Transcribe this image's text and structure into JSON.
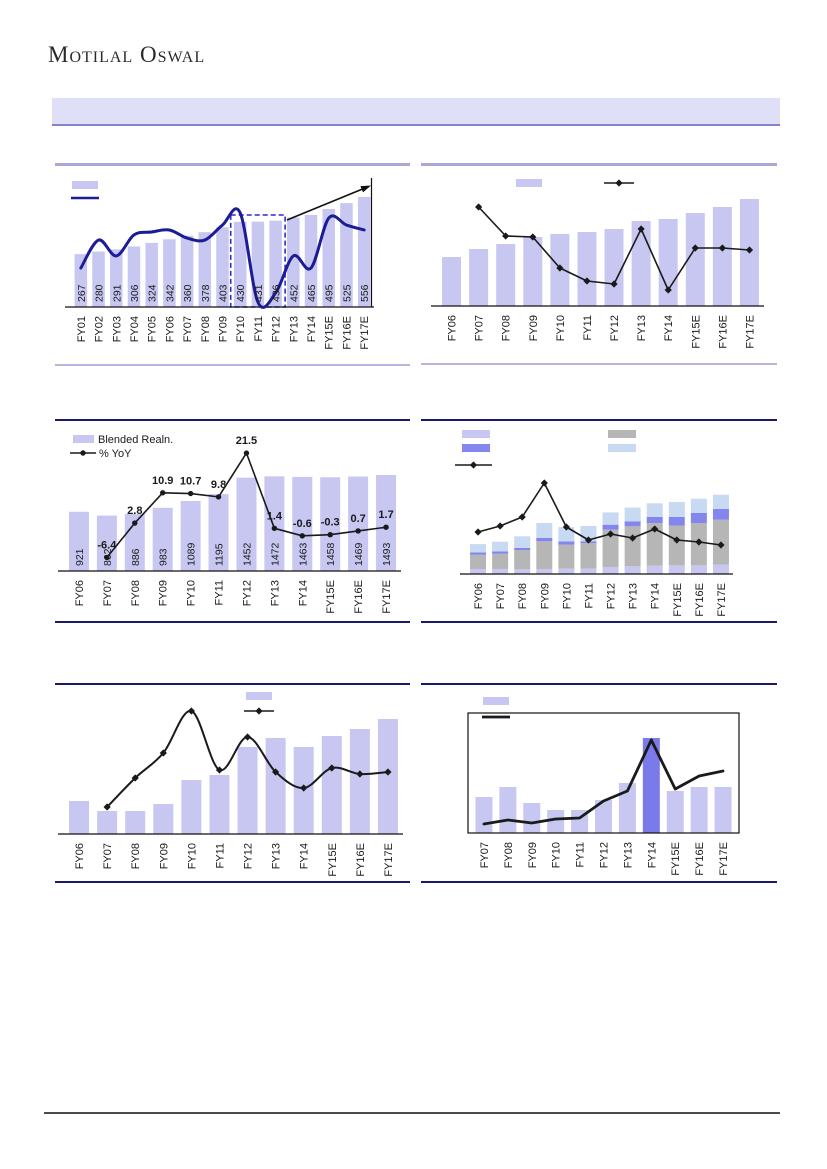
{
  "page": {
    "logo": "Motilal Oswal",
    "banner_text": "",
    "colors": {
      "bar": "#c7c7f2",
      "bar_highlight": "#7a7aeb",
      "navy_line": "#1c1c96",
      "black_line": "#1a1a1a",
      "gray_segment": "#b6b6b6",
      "blue_segment": "#8585ee",
      "lightblue_segment": "#c7daf1",
      "panel_border_light": "#a9a9d9",
      "panel_border_dark": "#18186e",
      "banner_bg": "#dfdff8",
      "banner_border": "#8484c6",
      "dashed_box": "#2b2bd4",
      "footer_line": "#4b4b4b",
      "label_text": "#1a1a1a"
    }
  },
  "chart_data": [
    {
      "id": "volume-trend",
      "type": "bar+line",
      "categories": [
        "FY01",
        "FY02",
        "FY03",
        "FY04",
        "FY05",
        "FY06",
        "FY07",
        "FY08",
        "FY09",
        "FY10",
        "FY11",
        "FY12",
        "FY13",
        "FY14",
        "FY15E",
        "FY16E",
        "FY17E"
      ],
      "bar_values": [
        267,
        280,
        291,
        306,
        324,
        342,
        360,
        378,
        403,
        430,
        431,
        436,
        452,
        465,
        495,
        525,
        556
      ],
      "bar_labels": [
        "267",
        "280",
        "291",
        "306",
        "324",
        "342",
        "360",
        "378",
        "403",
        "430",
        "431",
        "436",
        "452",
        "465",
        "495",
        "525",
        "556"
      ],
      "line_values_est": [
        197,
        338,
        258,
        364,
        379,
        389,
        348,
        338,
        414,
        475,
        25,
        71,
        258,
        197,
        449,
        414,
        389
      ],
      "line_start": "FY01",
      "line_smooth": true,
      "ylim": [
        0,
        620
      ],
      "legend": [
        {
          "swatch": "lavender-bar",
          "label": ""
        },
        {
          "swatch": "navy-line",
          "label": ""
        }
      ],
      "annotations": {
        "dashed_box_from": "FY10",
        "dashed_box_to": "FY12",
        "arrow": "up-right-trend",
        "right_edge_axis": true
      }
    },
    {
      "id": "growth-yoy-top-right",
      "type": "bar+line",
      "categories": [
        "FY06",
        "FY07",
        "FY08",
        "FY09",
        "FY10",
        "FY11",
        "FY12",
        "FY13",
        "FY14",
        "FY15E",
        "FY16E",
        "FY17E"
      ],
      "bar_values_est": [
        49,
        57,
        62,
        69,
        72,
        74,
        77,
        85,
        87,
        93,
        99,
        107
      ],
      "line_values_est": [
        99,
        70,
        69,
        38,
        25,
        22,
        77,
        16,
        58,
        58,
        56
      ],
      "line_start": "FY07",
      "line_smooth": false,
      "ylim": [
        0,
        130
      ],
      "legend": [
        {
          "swatch": "lavender-bar",
          "label": ""
        },
        {
          "swatch": "black-line-diamond",
          "label": ""
        }
      ]
    },
    {
      "id": "blended-realisation",
      "type": "bar+line",
      "categories": [
        "FY06",
        "FY07",
        "FY08",
        "FY09",
        "FY10",
        "FY11",
        "FY12",
        "FY13",
        "FY14",
        "FY15E",
        "FY16E",
        "FY17E"
      ],
      "bar_values": [
        921,
        862,
        886,
        983,
        1089,
        1195,
        1452,
        1472,
        1463,
        1458,
        1469,
        1493
      ],
      "bar_labels": [
        "921",
        "862",
        "886",
        "983",
        "1089",
        "1195",
        "1452",
        "1472",
        "1463",
        "1458",
        "1469",
        "1493"
      ],
      "line_values": [
        -6.4,
        2.8,
        10.9,
        10.7,
        9.8,
        21.5,
        1.4,
        -0.6,
        -0.3,
        0.7,
        1.7
      ],
      "line_labels": [
        "-6.4",
        "2.8",
        "10.9",
        "10.7",
        "9.8",
        "21.5",
        "1.4",
        "-0.6",
        "-0.3",
        "0.7",
        "1.7"
      ],
      "line_start": "FY07",
      "line_smooth": false,
      "ylim": [
        0,
        1700
      ],
      "line_ylim": [
        -10,
        25
      ],
      "legend": [
        {
          "swatch": "lavender-bar",
          "label": "Blended Realn."
        },
        {
          "swatch": "black-line-dot",
          "label": "% YoY"
        }
      ]
    },
    {
      "id": "stacked-mix",
      "type": "stacked-bar+line",
      "categories": [
        "FY06",
        "FY07",
        "FY08",
        "FY09",
        "FY10",
        "FY11",
        "FY12",
        "FY13",
        "FY14",
        "FY15E",
        "FY16E",
        "FY17E"
      ],
      "series": [
        {
          "name": "lavender-segment",
          "values_est": [
            5,
            5,
            4.7,
            5,
            5.3,
            5.3,
            7,
            7.7,
            8.3,
            8.7,
            8.7,
            9.3
          ]
        },
        {
          "name": "gray-segment",
          "values_est": [
            14.3,
            15.3,
            19.3,
            27.7,
            24,
            25.7,
            37.3,
            40,
            42.7,
            39.7,
            42.3,
            45
          ]
        },
        {
          "name": "blue-segment",
          "values_est": [
            2.3,
            2.3,
            2,
            3.3,
            3.3,
            1.7,
            5,
            5,
            6,
            8.7,
            10,
            10.7
          ]
        },
        {
          "name": "lightblue-segment",
          "values_est": [
            8.3,
            9.7,
            11.7,
            15,
            14.3,
            15.3,
            12.3,
            13.7,
            13.7,
            15,
            14.3,
            14.3
          ]
        }
      ],
      "line_values_est": [
        42,
        48,
        57,
        91,
        47,
        34,
        40,
        36,
        45,
        34,
        32,
        29
      ],
      "line_start": "FY06",
      "line_smooth": false,
      "ylim": [
        0,
        100
      ],
      "legend": [
        {
          "swatch": "lavender-bar",
          "label": ""
        },
        {
          "swatch": "blue-bar",
          "label": ""
        },
        {
          "swatch": "black-line-diamond",
          "label": ""
        },
        {
          "swatch": "gray-bar",
          "label": ""
        },
        {
          "swatch": "lightblue-bar",
          "label": ""
        }
      ]
    },
    {
      "id": "bottom-left-trend",
      "type": "bar+line",
      "categories": [
        "FY06",
        "FY07",
        "FY08",
        "FY09",
        "FY10",
        "FY11",
        "FY12",
        "FY13",
        "FY14",
        "FY15E",
        "FY16E",
        "FY17E"
      ],
      "bar_values_est": [
        33,
        23,
        23,
        30,
        54,
        59,
        87,
        96,
        87,
        98,
        105,
        115
      ],
      "line_values_est": [
        27,
        56,
        81,
        123,
        64,
        97,
        62,
        46,
        66,
        60,
        62
      ],
      "line_start": "FY07",
      "line_smooth": true,
      "ylim": [
        0,
        130
      ],
      "legend": [
        {
          "swatch": "lavender-bar",
          "label": ""
        },
        {
          "swatch": "black-line-diamond",
          "label": ""
        }
      ]
    },
    {
      "id": "bottom-right-highlight",
      "type": "bar+line",
      "categories": [
        "FY07",
        "FY08",
        "FY09",
        "FY10",
        "FY11",
        "FY12",
        "FY13",
        "FY14",
        "FY15E",
        "FY16E",
        "FY17E"
      ],
      "bar_values_est": [
        36,
        46,
        30,
        23,
        23,
        33,
        50,
        95,
        42,
        46,
        46
      ],
      "highlight_category": "FY14",
      "line_values_est": [
        9,
        13,
        10,
        14,
        15,
        32,
        42,
        93,
        44,
        57,
        62
      ],
      "line_start": "FY07",
      "line_smooth": false,
      "ylim": [
        0,
        125
      ],
      "framed": true,
      "legend": [
        {
          "swatch": "lavender-bar",
          "label": ""
        },
        {
          "swatch": "black-line",
          "label": ""
        }
      ]
    }
  ]
}
